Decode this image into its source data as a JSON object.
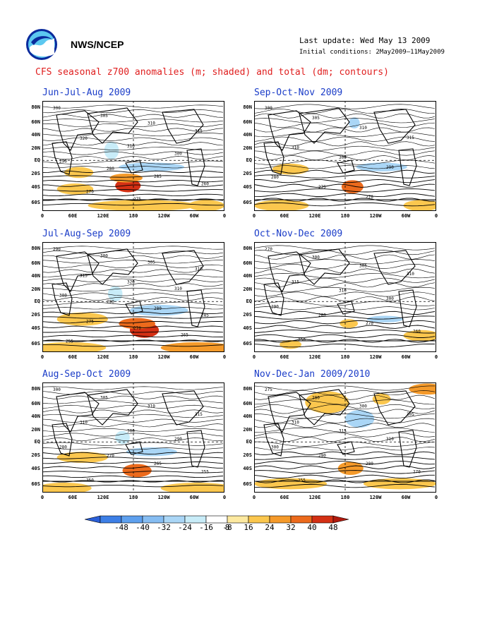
{
  "header": {
    "org": "NWS/NCEP",
    "last_update": "Last update: Wed May 13 2009",
    "initial_conditions": "Initial conditions: 2May2009–11May2009",
    "title": "CFS seasonal z700 anomalies (m; shaded) and total (dm; contours)"
  },
  "y_axis_labels": [
    "80N",
    "60N",
    "40N",
    "20N",
    "EQ",
    "20S",
    "40S",
    "60S"
  ],
  "x_axis_labels": [
    "0",
    "60E",
    "120E",
    "180",
    "120W",
    "60W",
    "0"
  ],
  "panels": [
    {
      "title": "Jun-Jul-Aug 2009",
      "contour_labels": [
        "300",
        "305",
        "310",
        "315",
        "320",
        "310",
        "300",
        "290",
        "280",
        "285",
        "260",
        "270",
        "275"
      ]
    },
    {
      "title": "Sep-Oct-Nov 2009",
      "contour_labels": [
        "300",
        "305",
        "310",
        "315",
        "310",
        "300",
        "290",
        "280",
        "275",
        "270"
      ]
    },
    {
      "title": "Jul-Aug-Sep 2009",
      "contour_labels": [
        "290",
        "300",
        "305",
        "310",
        "315",
        "320",
        "310",
        "300",
        "290",
        "280",
        "285",
        "275",
        "270",
        "265",
        "255"
      ]
    },
    {
      "title": "Oct-Nov-Dec 2009",
      "contour_labels": [
        "270",
        "300",
        "305",
        "310",
        "315",
        "310",
        "300",
        "290",
        "280",
        "270",
        "260",
        "250"
      ]
    },
    {
      "title": "Aug-Sep-Oct 2009",
      "contour_labels": [
        "300",
        "305",
        "310",
        "315",
        "310",
        "300",
        "290",
        "280",
        "270",
        "265",
        "255",
        "250"
      ]
    },
    {
      "title": "Nov-Dec-Jan 2009/2010",
      "contour_labels": [
        "275",
        "280",
        "300",
        "305",
        "310",
        "315",
        "310",
        "300",
        "290",
        "280",
        "270",
        "255"
      ]
    }
  ],
  "legend": {
    "labels": [
      "-48",
      "-40",
      "-32",
      "-24",
      "-16",
      "-8",
      "8",
      "16",
      "24",
      "32",
      "40",
      "48"
    ],
    "colors": [
      "#2a5fd8",
      "#3d7fe6",
      "#5ea0ee",
      "#86bdf2",
      "#aad6f6",
      "#c8ecf8",
      "#ffffff",
      "#fde9a0",
      "#fbc74e",
      "#f59a2a",
      "#ec6a1c",
      "#d43014",
      "#b01a0e"
    ]
  }
}
